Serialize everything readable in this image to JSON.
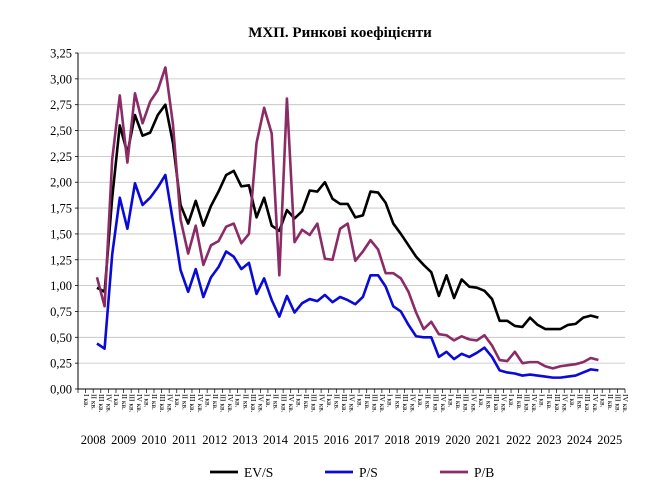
{
  "chart_data": {
    "type": "line",
    "title": "МХП. Ринкові коефіцієнти",
    "xlabel": "",
    "ylabel": "",
    "ylim": [
      0,
      3.25
    ],
    "y_ticks": [
      0,
      0.25,
      0.5,
      0.75,
      1,
      1.25,
      1.5,
      1.75,
      2,
      2.25,
      2.5,
      2.75,
      3,
      3.25
    ],
    "y_tick_labels": [
      "0,00",
      "0,25",
      "0,50",
      "0,75",
      "1,00",
      "1,25",
      "1,50",
      "1,75",
      "2,00",
      "2,25",
      "2,50",
      "2,75",
      "3,00",
      "3,25"
    ],
    "x_year_labels": [
      "2008",
      "2009",
      "2010",
      "2011",
      "2012",
      "2013",
      "2014",
      "2015",
      "2016",
      "2017",
      "2018",
      "2019",
      "2020",
      "2021",
      "2022",
      "2023",
      "2024",
      "2025"
    ],
    "x_quarter_labels": [
      "I кв.",
      "II кв.",
      "III кв.",
      "IV кв."
    ],
    "x_first_year": 2008,
    "x_first_quarter": 3,
    "grid": "horizontal",
    "legend_position": "bottom",
    "series": [
      {
        "name": "EV/S",
        "color": "#000000",
        "values": [
          0.98,
          0.94,
          1.85,
          2.55,
          2.28,
          2.65,
          2.45,
          2.48,
          2.65,
          2.75,
          2.38,
          1.78,
          1.6,
          1.82,
          1.58,
          1.77,
          1.91,
          2.07,
          2.11,
          1.96,
          1.97,
          1.66,
          1.85,
          1.58,
          1.53,
          1.73,
          1.65,
          1.72,
          1.92,
          1.91,
          2.0,
          1.84,
          1.79,
          1.79,
          1.66,
          1.68,
          1.91,
          1.9,
          1.8,
          1.6,
          1.5,
          1.39,
          1.28,
          1.2,
          1.13,
          0.9,
          1.1,
          0.88,
          1.06,
          0.99,
          0.98,
          0.95,
          0.87,
          0.66,
          0.66,
          0.61,
          0.6,
          0.69,
          0.62,
          0.58,
          0.58,
          0.58,
          0.62,
          0.63,
          0.69,
          0.71,
          0.69
        ]
      },
      {
        "name": "P/S",
        "color": "#0a0ad8",
        "values": [
          0.44,
          0.39,
          1.3,
          1.85,
          1.55,
          1.99,
          1.78,
          1.85,
          1.95,
          2.07,
          1.62,
          1.15,
          0.94,
          1.16,
          0.89,
          1.08,
          1.18,
          1.33,
          1.28,
          1.16,
          1.22,
          0.92,
          1.07,
          0.86,
          0.7,
          0.9,
          0.74,
          0.83,
          0.87,
          0.85,
          0.91,
          0.84,
          0.89,
          0.86,
          0.82,
          0.89,
          1.1,
          1.1,
          0.99,
          0.8,
          0.75,
          0.62,
          0.51,
          0.5,
          0.5,
          0.31,
          0.36,
          0.29,
          0.34,
          0.31,
          0.35,
          0.4,
          0.31,
          0.18,
          0.16,
          0.15,
          0.13,
          0.14,
          0.13,
          0.12,
          0.11,
          0.11,
          0.12,
          0.13,
          0.16,
          0.19,
          0.18
        ]
      },
      {
        "name": "P/B",
        "color": "#8b2c67",
        "values": [
          1.08,
          0.8,
          2.22,
          2.84,
          2.19,
          2.86,
          2.57,
          2.78,
          2.89,
          3.11,
          2.56,
          1.64,
          1.31,
          1.58,
          1.2,
          1.39,
          1.43,
          1.57,
          1.6,
          1.41,
          1.5,
          2.38,
          2.72,
          2.47,
          1.1,
          2.81,
          1.42,
          1.54,
          1.49,
          1.6,
          1.26,
          1.25,
          1.55,
          1.6,
          1.24,
          1.33,
          1.44,
          1.35,
          1.12,
          1.12,
          1.07,
          0.94,
          0.74,
          0.58,
          0.65,
          0.53,
          0.52,
          0.47,
          0.51,
          0.48,
          0.47,
          0.52,
          0.42,
          0.28,
          0.27,
          0.36,
          0.25,
          0.26,
          0.26,
          0.22,
          0.2,
          0.22,
          0.23,
          0.24,
          0.26,
          0.3,
          0.28
        ]
      }
    ]
  }
}
